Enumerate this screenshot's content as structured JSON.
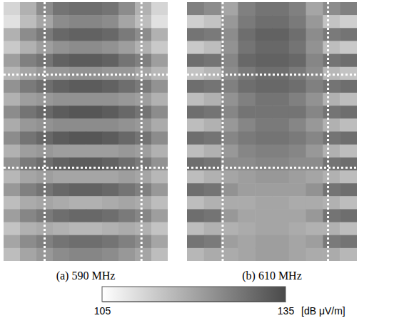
{
  "chart_data": [
    {
      "type": "heatmap",
      "title": "(a) 590 MHz",
      "cells": [
        [
          112,
          118,
          124,
          128,
          129,
          129,
          128,
          124,
          118,
          112
        ],
        [
          110,
          116,
          120,
          124,
          125,
          125,
          124,
          120,
          116,
          110
        ],
        [
          118,
          124,
          127,
          130,
          131,
          131,
          130,
          127,
          124,
          118
        ],
        [
          114,
          118,
          121,
          123,
          124,
          124,
          123,
          121,
          118,
          114
        ],
        [
          121,
          126,
          128,
          131,
          132,
          132,
          131,
          128,
          126,
          121
        ],
        [
          117,
          120,
          122,
          122,
          123,
          123,
          122,
          122,
          120,
          117
        ],
        [
          123,
          127,
          129,
          131,
          132,
          132,
          131,
          129,
          127,
          123
        ],
        [
          118,
          121,
          122,
          123,
          123,
          123,
          123,
          122,
          121,
          118
        ],
        [
          124,
          128,
          130,
          132,
          133,
          133,
          132,
          130,
          128,
          124
        ],
        [
          119,
          122,
          123,
          124,
          124,
          124,
          124,
          123,
          122,
          119
        ],
        [
          124,
          128,
          130,
          132,
          133,
          133,
          132,
          130,
          128,
          124
        ],
        [
          118,
          121,
          122,
          121,
          121,
          121,
          121,
          122,
          121,
          118
        ],
        [
          123,
          127,
          129,
          131,
          132,
          132,
          131,
          129,
          127,
          123
        ],
        [
          117,
          120,
          121,
          120,
          120,
          120,
          120,
          121,
          120,
          117
        ],
        [
          122,
          126,
          128,
          130,
          131,
          131,
          130,
          128,
          126,
          122
        ],
        [
          116,
          119,
          120,
          119,
          118,
          118,
          119,
          120,
          119,
          116
        ],
        [
          121,
          125,
          127,
          129,
          130,
          130,
          129,
          127,
          125,
          121
        ],
        [
          115,
          118,
          119,
          118,
          117,
          117,
          118,
          119,
          118,
          115
        ],
        [
          120,
          124,
          126,
          128,
          129,
          129,
          128,
          126,
          124,
          120
        ],
        [
          116,
          120,
          122,
          124,
          125,
          125,
          124,
          122,
          120,
          116
        ]
      ]
    },
    {
      "type": "heatmap",
      "title": "(b) 610 MHz",
      "cells": [
        [
          126,
          124,
          120,
          126,
          128,
          128,
          126,
          120,
          124,
          126
        ],
        [
          113,
          115,
          122,
          127,
          129,
          129,
          127,
          122,
          115,
          113
        ],
        [
          128,
          127,
          124,
          129,
          131,
          131,
          129,
          124,
          127,
          128
        ],
        [
          114,
          116,
          123,
          128,
          130,
          130,
          128,
          123,
          116,
          114
        ],
        [
          129,
          128,
          125,
          130,
          131,
          131,
          130,
          125,
          128,
          129
        ],
        [
          115,
          117,
          124,
          127,
          129,
          129,
          127,
          124,
          117,
          115
        ],
        [
          129,
          128,
          126,
          129,
          130,
          130,
          129,
          126,
          128,
          129
        ],
        [
          116,
          118,
          123,
          126,
          128,
          128,
          126,
          123,
          118,
          116
        ],
        [
          129,
          128,
          125,
          128,
          128,
          128,
          128,
          125,
          128,
          129
        ],
        [
          116,
          118,
          122,
          125,
          127,
          127,
          125,
          122,
          118,
          116
        ],
        [
          129,
          128,
          125,
          127,
          128,
          128,
          127,
          125,
          128,
          129
        ],
        [
          116,
          118,
          122,
          125,
          126,
          126,
          125,
          122,
          118,
          116
        ],
        [
          129,
          128,
          124,
          124,
          125,
          125,
          124,
          124,
          128,
          129
        ],
        [
          116,
          118,
          120,
          121,
          122,
          122,
          121,
          120,
          118,
          116
        ],
        [
          129,
          128,
          123,
          121,
          121,
          121,
          121,
          123,
          128,
          129
        ],
        [
          116,
          118,
          119,
          119,
          120,
          120,
          119,
          119,
          118,
          116
        ],
        [
          129,
          128,
          122,
          120,
          120,
          120,
          120,
          122,
          128,
          129
        ],
        [
          116,
          118,
          118,
          119,
          120,
          120,
          119,
          118,
          118,
          116
        ],
        [
          128,
          127,
          121,
          120,
          121,
          121,
          120,
          121,
          127,
          128
        ],
        [
          117,
          119,
          119,
          120,
          121,
          121,
          120,
          119,
          119,
          117
        ]
      ]
    }
  ],
  "colorbar": {
    "range": [
      105,
      135
    ],
    "ticks": [
      105,
      135
    ],
    "label": "[dB μV/m]"
  }
}
